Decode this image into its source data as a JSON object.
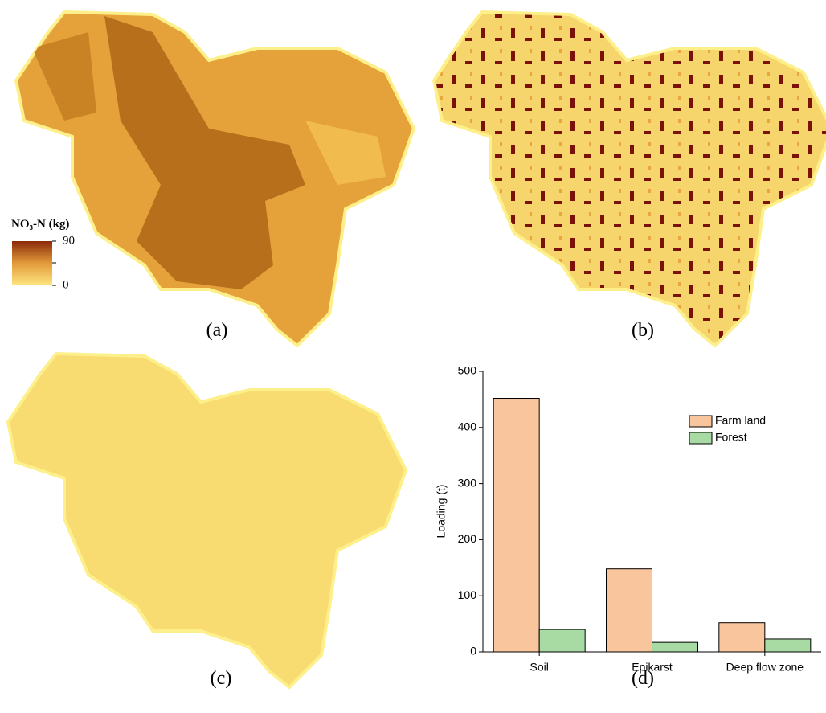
{
  "colorbar": {
    "title": "NO₃-N (kg)",
    "range": [
      0,
      90
    ],
    "ticks": [
      0,
      90
    ]
  },
  "panel_labels": [
    "(a)",
    "(b)",
    "(c)",
    "(d)"
  ],
  "chart_data": {
    "type": "bar",
    "y_label": "Loading (t)",
    "categories": [
      "Soil",
      "Epikarst",
      "Deep flow zone"
    ],
    "series": [
      {
        "name": "Farm land",
        "color": "#f9c59c",
        "values": [
          452,
          148,
          52
        ]
      },
      {
        "name": "Forest",
        "color": "#a8dba4",
        "values": [
          40,
          17,
          23
        ]
      }
    ],
    "ylim": [
      0,
      500
    ],
    "yticks": [
      0,
      100,
      200,
      300,
      400,
      500
    ],
    "legend": "upper right"
  }
}
